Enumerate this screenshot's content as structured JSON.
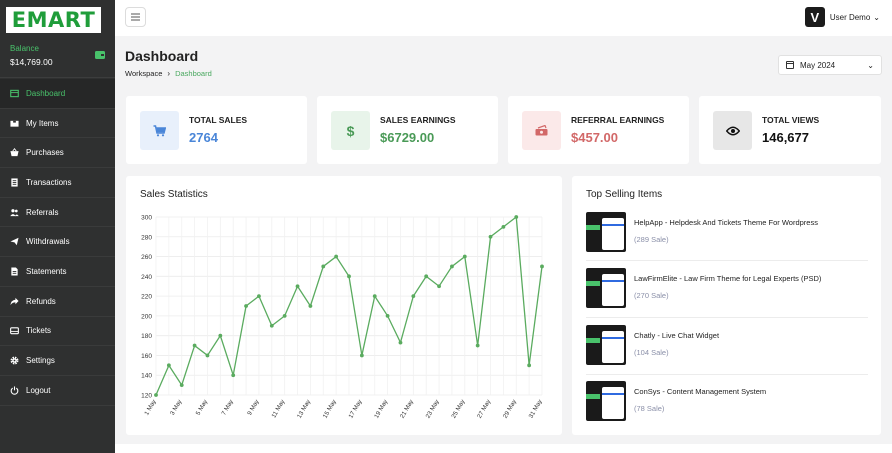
{
  "brand": {
    "logo_text": "EMART",
    "accent": "#49c26b"
  },
  "sidebar": {
    "balance_label": "Balance",
    "balance_value": "$14,769.00",
    "items": [
      {
        "label": "Dashboard",
        "icon": "dashboard-icon",
        "active": true
      },
      {
        "label": "My Items",
        "icon": "box-icon"
      },
      {
        "label": "Purchases",
        "icon": "basket-icon"
      },
      {
        "label": "Transactions",
        "icon": "document-icon"
      },
      {
        "label": "Referrals",
        "icon": "users-icon"
      },
      {
        "label": "Withdrawals",
        "icon": "send-icon"
      },
      {
        "label": "Statements",
        "icon": "file-icon"
      },
      {
        "label": "Refunds",
        "icon": "share-icon"
      },
      {
        "label": "Tickets",
        "icon": "ticket-icon"
      },
      {
        "label": "Settings",
        "icon": "gear-icon"
      },
      {
        "label": "Logout",
        "icon": "power-icon"
      }
    ]
  },
  "topbar": {
    "user_name": "User Demo",
    "avatar_letter": "V"
  },
  "page": {
    "title": "Dashboard",
    "breadcrumb": [
      "Workspace",
      "Dashboard"
    ],
    "month": "May 2024"
  },
  "stats": [
    {
      "label": "TOTAL SALES",
      "value": "2764",
      "color": "#4a86d8",
      "bg": "#e8f0fb",
      "icon": "cart-icon"
    },
    {
      "label": "SALES EARNINGS",
      "value": "$6729.00",
      "color": "#4a9a57",
      "bg": "#e8f4ea",
      "icon": "dollar-icon"
    },
    {
      "label": "REFERRAL EARNINGS",
      "value": "$457.00",
      "color": "#d26868",
      "bg": "#fbe9e9",
      "icon": "money-icon"
    },
    {
      "label": "TOTAL VIEWS",
      "value": "146,677",
      "color": "#111111",
      "bg": "#e7e7e7",
      "icon": "eye-icon"
    }
  ],
  "sales_statistics": {
    "title": "Sales Statistics"
  },
  "chart_data": {
    "type": "line",
    "title": "Sales Statistics",
    "xlabel": "",
    "ylabel": "",
    "ylim": [
      120,
      300
    ],
    "yticks": [
      120,
      140,
      160,
      180,
      200,
      220,
      240,
      260,
      280,
      300
    ],
    "x": [
      "1 May",
      "2 May",
      "3 May",
      "4 May",
      "5 May",
      "6 May",
      "7 May",
      "8 May",
      "9 May",
      "10 May",
      "11 May",
      "12 May",
      "13 May",
      "14 May",
      "15 May",
      "16 May",
      "17 May",
      "18 May",
      "19 May",
      "20 May",
      "21 May",
      "22 May",
      "23 May",
      "24 May",
      "25 May",
      "26 May",
      "27 May",
      "28 May",
      "29 May",
      "30 May",
      "31 May"
    ],
    "xtick_labels": [
      "1 May",
      "3 May",
      "5 May",
      "7 May",
      "9 May",
      "11 May",
      "13 May",
      "15 May",
      "17 May",
      "19 May",
      "21 May",
      "23 May",
      "25 May",
      "27 May",
      "29 May",
      "31 May"
    ],
    "series": [
      {
        "values": [
          120,
          150,
          130,
          170,
          160,
          180,
          140,
          210,
          220,
          190,
          200,
          230,
          210,
          250,
          260,
          240,
          160,
          220,
          200,
          173,
          220,
          240,
          230,
          250,
          260,
          170,
          280,
          290,
          300,
          150,
          250
        ],
        "color": "#5aab5f"
      }
    ],
    "grid": true,
    "legend": "none"
  },
  "top_selling": {
    "title": "Top Selling Items",
    "items": [
      {
        "name": "HelpApp - Helpdesk And Tickets Theme For Wordpress",
        "sales": "(289 Sale)"
      },
      {
        "name": "LawFirmElite - Law Firm Theme for Legal Experts (PSD)",
        "sales": "(270 Sale)"
      },
      {
        "name": "Chatly - Live Chat Widget",
        "sales": "(104 Sale)"
      },
      {
        "name": "ConSys - Content Management System",
        "sales": "(78 Sale)"
      }
    ]
  }
}
